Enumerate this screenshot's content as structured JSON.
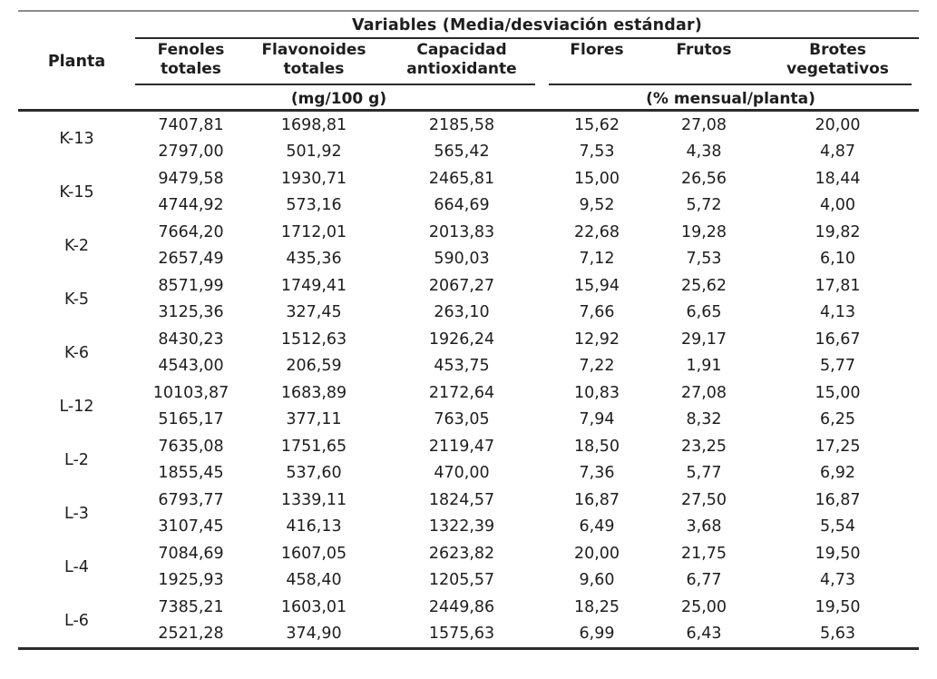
{
  "table": {
    "variables_title": "Variables (Media/desviación estándar)",
    "planta_label": "Planta",
    "columns": [
      "Fenoles\ntotales",
      "Flavonoides\ntotales",
      "Capacidad\nantioxidante",
      "Flores",
      "Frutos",
      "Brotes\nvegetativos"
    ],
    "units": {
      "left": "(mg/100 g)",
      "right": "(% mensual/planta)"
    },
    "colors": {
      "text": "#1e1e1e",
      "rule_dark": "#2b2b2b",
      "rule_gray": "#8a8b8d",
      "background": "#ffffff"
    },
    "rows": [
      {
        "planta": "K-13",
        "media": [
          "7407,81",
          "1698,81",
          "2185,58",
          "15,62",
          "27,08",
          "20,00"
        ],
        "sd": [
          "2797,00",
          "501,92",
          "565,42",
          "7,53",
          "4,38",
          "4,87"
        ]
      },
      {
        "planta": "K-15",
        "media": [
          "9479,58",
          "1930,71",
          "2465,81",
          "15,00",
          "26,56",
          "18,44"
        ],
        "sd": [
          "4744,92",
          "573,16",
          "664,69",
          "9,52",
          "5,72",
          "4,00"
        ]
      },
      {
        "planta": "K-2",
        "media": [
          "7664,20",
          "1712,01",
          "2013,83",
          "22,68",
          "19,28",
          "19,82"
        ],
        "sd": [
          "2657,49",
          "435,36",
          "590,03",
          "7,12",
          "7,53",
          "6,10"
        ]
      },
      {
        "planta": "K-5",
        "media": [
          "8571,99",
          "1749,41",
          "2067,27",
          "15,94",
          "25,62",
          "17,81"
        ],
        "sd": [
          "3125,36",
          "327,45",
          "263,10",
          "7,66",
          "6,65",
          "4,13"
        ]
      },
      {
        "planta": "K-6",
        "media": [
          "8430,23",
          "1512,63",
          "1926,24",
          "12,92",
          "29,17",
          "16,67"
        ],
        "sd": [
          "4543,00",
          "206,59",
          "453,75",
          "7,22",
          "1,91",
          "5,77"
        ]
      },
      {
        "planta": "L-12",
        "media": [
          "10103,87",
          "1683,89",
          "2172,64",
          "10,83",
          "27,08",
          "15,00"
        ],
        "sd": [
          "5165,17",
          "377,11",
          "763,05",
          "7,94",
          "8,32",
          "6,25"
        ]
      },
      {
        "planta": "L-2",
        "media": [
          "7635,08",
          "1751,65",
          "2119,47",
          "18,50",
          "23,25",
          "17,25"
        ],
        "sd": [
          "1855,45",
          "537,60",
          "470,00",
          "7,36",
          "5,77",
          "6,92"
        ]
      },
      {
        "planta": "L-3",
        "media": [
          "6793,77",
          "1339,11",
          "1824,57",
          "16,87",
          "27,50",
          "16,87"
        ],
        "sd": [
          "3107,45",
          "416,13",
          "1322,39",
          "6,49",
          "3,68",
          "5,54"
        ]
      },
      {
        "planta": "L-4",
        "media": [
          "7084,69",
          "1607,05",
          "2623,82",
          "20,00",
          "21,75",
          "19,50"
        ],
        "sd": [
          "1925,93",
          "458,40",
          "1205,57",
          "9,60",
          "6,77",
          "4,73"
        ]
      },
      {
        "planta": "L-6",
        "media": [
          "7385,21",
          "1603,01",
          "2449,86",
          "18,25",
          "25,00",
          "19,50"
        ],
        "sd": [
          "2521,28",
          "374,90",
          "1575,63",
          "6,99",
          "6,43",
          "5,63"
        ]
      }
    ]
  }
}
